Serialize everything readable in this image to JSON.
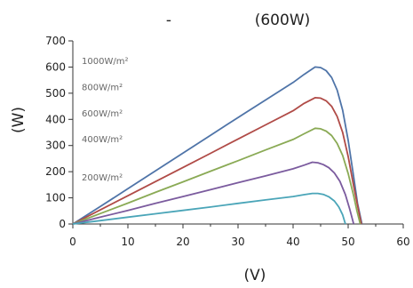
{
  "chart_data": {
    "type": "line",
    "title_left": "-",
    "title": "(600W)",
    "xlabel": "(V)",
    "ylabel": "(W)",
    "xlim": [
      0,
      60
    ],
    "ylim": [
      0,
      700
    ],
    "x_ticks": [
      "0",
      "10",
      "20",
      "30",
      "40",
      "50",
      "60"
    ],
    "y_ticks": [
      "0",
      "100",
      "200",
      "300",
      "400",
      "500",
      "600",
      "700"
    ],
    "grid": false,
    "legend": "none",
    "series": [
      {
        "name": "1000W/m²",
        "color": "#4f74a8",
        "x": [
          0,
          5,
          10,
          15,
          20,
          25,
          30,
          35,
          40,
          42,
          44,
          45,
          46,
          47,
          48,
          49,
          50,
          51,
          51.7,
          52.5
        ],
        "y": [
          0,
          67,
          135,
          203,
          271,
          339,
          407,
          474,
          541,
          572,
          600,
          598,
          586,
          560,
          512,
          435,
          320,
          180,
          80,
          0
        ]
      },
      {
        "name": "800W/m²",
        "color": "#b04b47",
        "x": [
          0,
          5,
          10,
          15,
          20,
          25,
          30,
          35,
          40,
          42,
          44,
          45,
          46,
          47,
          48,
          49,
          50,
          51,
          51.8,
          52.4
        ],
        "y": [
          0,
          54,
          108,
          162,
          216,
          270,
          325,
          379,
          433,
          461,
          483,
          481,
          471,
          450,
          411,
          350,
          258,
          145,
          60,
          0
        ]
      },
      {
        "name": "600W/m²",
        "color": "#8aaa55",
        "x": [
          0,
          5,
          10,
          15,
          20,
          25,
          30,
          35,
          40,
          42,
          44,
          45,
          46,
          47,
          48,
          49,
          50,
          51,
          51.6,
          52.2
        ],
        "y": [
          0,
          40,
          80,
          121,
          161,
          202,
          242,
          283,
          323,
          345,
          366,
          364,
          355,
          338,
          308,
          262,
          193,
          108,
          50,
          0
        ]
      },
      {
        "name": "400W/m²",
        "color": "#7b5b9e",
        "x": [
          0,
          5,
          10,
          15,
          20,
          25,
          30,
          35,
          40,
          42,
          43.5,
          44.5,
          45.5,
          46.5,
          47.5,
          48.5,
          49.5,
          50.3,
          51
        ],
        "y": [
          0,
          26,
          52,
          79,
          105,
          131,
          158,
          184,
          211,
          225,
          236,
          234,
          227,
          215,
          195,
          163,
          112,
          55,
          0
        ]
      },
      {
        "name": "200W/m²",
        "color": "#4aa5b8",
        "x": [
          0,
          5,
          10,
          15,
          20,
          25,
          30,
          35,
          40,
          42,
          43.5,
          44.5,
          45.5,
          46.5,
          47.5,
          48.3,
          49,
          49.5
        ],
        "y": [
          0,
          13,
          26,
          39,
          52,
          65,
          79,
          92,
          105,
          112,
          117,
          117,
          113,
          104,
          88,
          65,
          35,
          0
        ]
      }
    ]
  }
}
